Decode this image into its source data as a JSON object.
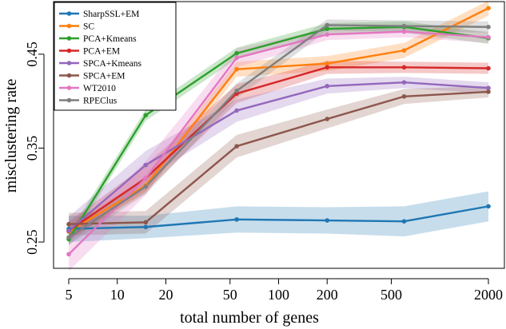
{
  "chart_data": {
    "type": "line",
    "title": "",
    "xlabel": "total number of genes",
    "ylabel": "misclustering rate",
    "xscale": "log",
    "xlim": [
      5,
      2000
    ],
    "ylim": [
      0.222,
      0.506
    ],
    "x": [
      5,
      15,
      55,
      200,
      600,
      2000
    ],
    "xticks": [
      5,
      10,
      20,
      50,
      100,
      200,
      500,
      2000
    ],
    "xtick_labels": [
      "5",
      "10",
      "20",
      "50",
      "100",
      "200",
      "500",
      "2000"
    ],
    "yticks": [
      0.25,
      0.35,
      0.45
    ],
    "ytick_labels": [
      "0.25",
      "0.35",
      "0.45"
    ],
    "legend_position": "top-left",
    "series": [
      {
        "name": "SharpSSL+EM",
        "color": "#1f77b4",
        "values": [
          0.264,
          0.266,
          0.274,
          0.273,
          0.272,
          0.288
        ],
        "band": [
          0.014,
          0.012,
          0.014,
          0.014,
          0.016,
          0.016
        ]
      },
      {
        "name": "SC",
        "color": "#ff7f0e",
        "values": [
          0.261,
          0.31,
          0.434,
          0.44,
          0.454,
          0.499
        ],
        "band": [
          0.008,
          0.008,
          0.008,
          0.008,
          0.008,
          0.008
        ]
      },
      {
        "name": "PCA+Kmeans",
        "color": "#2ca02c",
        "values": [
          0.253,
          0.385,
          0.451,
          0.477,
          0.479,
          0.467
        ],
        "band": [
          0.006,
          0.006,
          0.006,
          0.006,
          0.006,
          0.006
        ]
      },
      {
        "name": "PCA+EM",
        "color": "#d62728",
        "values": [
          0.262,
          0.318,
          0.408,
          0.436,
          0.436,
          0.435
        ],
        "band": [
          0.01,
          0.014,
          0.01,
          0.007,
          0.006,
          0.006
        ]
      },
      {
        "name": "SPCA+Kmeans",
        "color": "#9467bd",
        "values": [
          0.262,
          0.332,
          0.39,
          0.416,
          0.42,
          0.414
        ],
        "band": [
          0.015,
          0.015,
          0.012,
          0.008,
          0.006,
          0.006
        ]
      },
      {
        "name": "SPCA+EM",
        "color": "#8c564b",
        "values": [
          0.269,
          0.271,
          0.352,
          0.381,
          0.405,
          0.41
        ],
        "band": [
          0.012,
          0.012,
          0.012,
          0.01,
          0.008,
          0.006
        ]
      },
      {
        "name": "WT2010",
        "color": "#e377c2",
        "values": [
          0.237,
          0.318,
          0.446,
          0.471,
          0.474,
          0.468
        ],
        "band": [
          0.018,
          0.018,
          0.01,
          0.006,
          0.006,
          0.006
        ]
      },
      {
        "name": "RPEClus",
        "color": "#7f7f7f",
        "values": [
          0.255,
          0.309,
          0.411,
          0.481,
          0.48,
          0.479
        ],
        "band": [
          0.008,
          0.008,
          0.008,
          0.006,
          0.006,
          0.006
        ]
      }
    ]
  }
}
